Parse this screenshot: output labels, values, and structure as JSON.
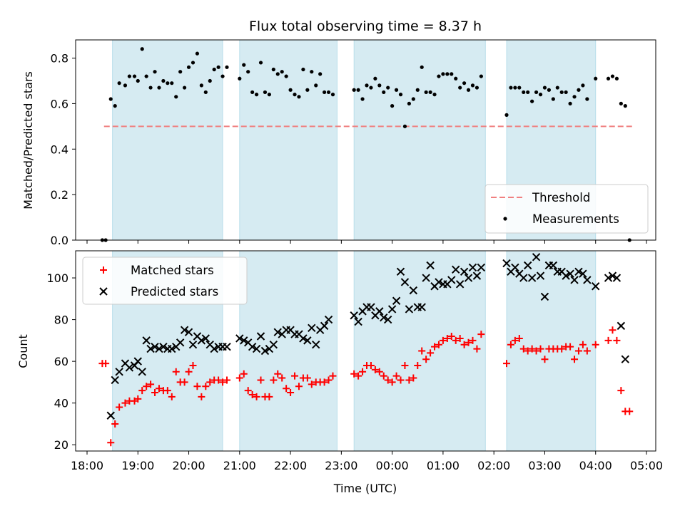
{
  "chart_data": [
    {
      "type": "scatter",
      "title": "Flux total observing time = 8.37 h",
      "ylabel": "Matched/Predicted stars",
      "xlabel": "",
      "xlim": [
        "18:00",
        "05:00"
      ],
      "ylim": [
        0,
        0.88
      ],
      "yticks": [
        "0.0",
        "0.2",
        "0.4",
        "0.6",
        "0.8"
      ],
      "legend_position": "lower-right",
      "shaded_intervals": [
        [
          "18:30",
          "20:40"
        ],
        [
          "21:00",
          "22:55"
        ],
        [
          "23:15",
          "01:50"
        ],
        [
          "02:15",
          "04:00"
        ]
      ],
      "threshold": {
        "name": "Threshold",
        "value": 0.5,
        "x_range": [
          "18:20",
          "04:45"
        ],
        "color": "#f08080"
      },
      "series": [
        {
          "name": "Measurements",
          "color": "#000000",
          "x": [
            "18:18",
            "18:22",
            "18:28",
            "18:33",
            "18:38",
            "18:45",
            "18:50",
            "18:56",
            "19:00",
            "19:05",
            "19:10",
            "19:15",
            "19:20",
            "19:25",
            "19:30",
            "19:35",
            "19:40",
            "19:45",
            "19:50",
            "19:55",
            "20:00",
            "20:05",
            "20:10",
            "20:15",
            "20:20",
            "20:25",
            "20:30",
            "20:35",
            "20:40",
            "20:45",
            "21:00",
            "21:05",
            "21:10",
            "21:15",
            "21:20",
            "21:25",
            "21:30",
            "21:35",
            "21:40",
            "21:45",
            "21:50",
            "21:55",
            "22:00",
            "22:05",
            "22:10",
            "22:15",
            "22:20",
            "22:25",
            "22:30",
            "22:35",
            "22:40",
            "22:45",
            "22:50",
            "23:15",
            "23:20",
            "23:25",
            "23:30",
            "23:35",
            "23:40",
            "23:45",
            "23:50",
            "23:55",
            "00:00",
            "00:05",
            "00:10",
            "00:15",
            "00:20",
            "00:25",
            "00:30",
            "00:35",
            "00:40",
            "00:45",
            "00:50",
            "00:55",
            "01:00",
            "01:05",
            "01:10",
            "01:15",
            "01:20",
            "01:25",
            "01:30",
            "01:35",
            "01:40",
            "01:45",
            "02:15",
            "02:20",
            "02:25",
            "02:30",
            "02:35",
            "02:40",
            "02:45",
            "02:50",
            "02:55",
            "03:00",
            "03:05",
            "03:10",
            "03:15",
            "03:20",
            "03:25",
            "03:30",
            "03:35",
            "03:40",
            "03:45",
            "03:50",
            "04:00",
            "04:15",
            "04:20",
            "04:25",
            "04:30",
            "04:35",
            "04:40"
          ],
          "y": [
            0.0,
            0.0,
            0.62,
            0.59,
            0.69,
            0.68,
            0.72,
            0.72,
            0.7,
            0.84,
            0.72,
            0.67,
            0.74,
            0.67,
            0.7,
            0.69,
            0.69,
            0.63,
            0.74,
            0.67,
            0.76,
            0.78,
            0.82,
            0.68,
            0.65,
            0.7,
            0.75,
            0.76,
            0.72,
            0.76,
            0.71,
            0.77,
            0.74,
            0.65,
            0.64,
            0.78,
            0.65,
            0.64,
            0.75,
            0.73,
            0.74,
            0.72,
            0.66,
            0.64,
            0.63,
            0.75,
            0.66,
            0.74,
            0.68,
            0.73,
            0.65,
            0.65,
            0.64,
            0.66,
            0.66,
            0.62,
            0.68,
            0.67,
            0.71,
            0.68,
            0.65,
            0.67,
            0.59,
            0.66,
            0.64,
            0.5,
            0.6,
            0.62,
            0.66,
            0.76,
            0.65,
            0.65,
            0.64,
            0.72,
            0.73,
            0.73,
            0.73,
            0.71,
            0.67,
            0.69,
            0.66,
            0.68,
            0.67,
            0.72,
            0.55,
            0.67,
            0.67,
            0.67,
            0.65,
            0.65,
            0.61,
            0.65,
            0.64,
            0.67,
            0.66,
            0.62,
            0.67,
            0.65,
            0.65,
            0.6,
            0.63,
            0.66,
            0.68,
            0.62,
            0.71,
            0.71,
            0.72,
            0.71,
            0.6,
            0.59,
            0.0
          ]
        }
      ]
    },
    {
      "type": "scatter",
      "title": "",
      "xlabel": "Time (UTC)",
      "ylabel": "Count",
      "xlim": [
        "18:00",
        "05:00"
      ],
      "ylim": [
        17,
        113
      ],
      "yticks": [
        "20",
        "40",
        "60",
        "80",
        "100"
      ],
      "xticks": [
        "18:00",
        "19:00",
        "20:00",
        "21:00",
        "22:00",
        "23:00",
        "00:00",
        "01:00",
        "02:00",
        "03:00",
        "04:00",
        "05:00"
      ],
      "legend_position": "upper-left",
      "shaded_intervals": [
        [
          "18:30",
          "20:40"
        ],
        [
          "21:00",
          "22:55"
        ],
        [
          "23:15",
          "01:50"
        ],
        [
          "02:15",
          "04:00"
        ]
      ],
      "series": [
        {
          "name": "Matched stars",
          "color": "#ff0000",
          "marker": "+",
          "x": [
            "18:18",
            "18:22",
            "18:28",
            "18:33",
            "18:38",
            "18:45",
            "18:50",
            "18:56",
            "19:00",
            "19:05",
            "19:10",
            "19:15",
            "19:20",
            "19:25",
            "19:30",
            "19:35",
            "19:40",
            "19:45",
            "19:50",
            "19:55",
            "20:00",
            "20:05",
            "20:10",
            "20:15",
            "20:20",
            "20:25",
            "20:30",
            "20:35",
            "20:40",
            "20:45",
            "21:00",
            "21:05",
            "21:10",
            "21:15",
            "21:20",
            "21:25",
            "21:30",
            "21:35",
            "21:40",
            "21:45",
            "21:50",
            "21:55",
            "22:00",
            "22:05",
            "22:10",
            "22:15",
            "22:20",
            "22:25",
            "22:30",
            "22:35",
            "22:40",
            "22:45",
            "22:50",
            "23:15",
            "23:20",
            "23:25",
            "23:30",
            "23:35",
            "23:40",
            "23:45",
            "23:50",
            "23:55",
            "00:00",
            "00:05",
            "00:10",
            "00:15",
            "00:20",
            "00:25",
            "00:30",
            "00:35",
            "00:40",
            "00:45",
            "00:50",
            "00:55",
            "01:00",
            "01:05",
            "01:10",
            "01:15",
            "01:20",
            "01:25",
            "01:30",
            "01:35",
            "01:40",
            "01:45",
            "02:15",
            "02:20",
            "02:25",
            "02:30",
            "02:35",
            "02:40",
            "02:45",
            "02:50",
            "02:55",
            "03:00",
            "03:05",
            "03:10",
            "03:15",
            "03:20",
            "03:25",
            "03:30",
            "03:35",
            "03:40",
            "03:45",
            "03:50",
            "04:00",
            "04:15",
            "04:20",
            "04:25",
            "04:30",
            "04:35",
            "04:40"
          ],
          "y": [
            59,
            59,
            21,
            30,
            38,
            40,
            41,
            41,
            42,
            46,
            48,
            49,
            45,
            47,
            46,
            46,
            43,
            55,
            50,
            50,
            55,
            58,
            48,
            43,
            48,
            50,
            51,
            51,
            50,
            51,
            52,
            54,
            46,
            44,
            43,
            51,
            43,
            43,
            51,
            54,
            52,
            47,
            45,
            53,
            48,
            52,
            52,
            49,
            50,
            50,
            50,
            51,
            53,
            54,
            53,
            55,
            58,
            58,
            56,
            55,
            53,
            51,
            50,
            53,
            51,
            58,
            51,
            52,
            58,
            65,
            61,
            64,
            67,
            68,
            70,
            71,
            72,
            70,
            71,
            68,
            69,
            70,
            66,
            73,
            59,
            68,
            70,
            71,
            66,
            65,
            66,
            65,
            66,
            61,
            66,
            66,
            66,
            66,
            67,
            67,
            61,
            65,
            68,
            65,
            68,
            70,
            75,
            70,
            46,
            36,
            36
          ]
        },
        {
          "name": "Predicted stars",
          "color": "#000000",
          "marker": "x",
          "x": [
            "18:18",
            "18:22",
            "18:28",
            "18:33",
            "18:38",
            "18:45",
            "18:50",
            "18:56",
            "19:00",
            "19:05",
            "19:10",
            "19:15",
            "19:20",
            "19:25",
            "19:30",
            "19:35",
            "19:40",
            "19:45",
            "19:50",
            "19:55",
            "20:00",
            "20:05",
            "20:10",
            "20:15",
            "20:20",
            "20:25",
            "20:30",
            "20:35",
            "20:40",
            "20:45",
            "21:00",
            "21:05",
            "21:10",
            "21:15",
            "21:20",
            "21:25",
            "21:30",
            "21:35",
            "21:40",
            "21:45",
            "21:50",
            "21:55",
            "22:00",
            "22:05",
            "22:10",
            "22:15",
            "22:20",
            "22:25",
            "22:30",
            "22:35",
            "22:40",
            "22:45",
            "22:50",
            "23:15",
            "23:20",
            "23:25",
            "23:30",
            "23:35",
            "23:40",
            "23:45",
            "23:50",
            "23:55",
            "00:00",
            "00:05",
            "00:10",
            "00:15",
            "00:20",
            "00:25",
            "00:30",
            "00:35",
            "00:40",
            "00:45",
            "00:50",
            "00:55",
            "01:00",
            "01:05",
            "01:10",
            "01:15",
            "01:20",
            "01:25",
            "01:30",
            "01:35",
            "01:40",
            "01:45",
            "02:15",
            "02:20",
            "02:25",
            "02:30",
            "02:35",
            "02:40",
            "02:45",
            "02:50",
            "02:55",
            "03:00",
            "03:05",
            "03:10",
            "03:15",
            "03:20",
            "03:25",
            "03:30",
            "03:35",
            "03:40",
            "03:45",
            "03:50",
            "04:00",
            "04:15",
            "04:20",
            "04:25",
            "04:30",
            "04:35",
            "04:40"
          ],
          "y": [
            null,
            null,
            34,
            51,
            55,
            59,
            57,
            58,
            60,
            55,
            70,
            66,
            67,
            66,
            67,
            66,
            66,
            67,
            69,
            75,
            74,
            68,
            72,
            70,
            71,
            68,
            66,
            67,
            67,
            67,
            71,
            70,
            69,
            67,
            66,
            72,
            65,
            66,
            68,
            74,
            73,
            75,
            75,
            73,
            73,
            71,
            70,
            76,
            68,
            75,
            77,
            80,
            null,
            82,
            79,
            84,
            86,
            86,
            82,
            84,
            81,
            80,
            85,
            89,
            103,
            98,
            85,
            94,
            86,
            86,
            100,
            106,
            96,
            98,
            97,
            97,
            99,
            104,
            97,
            103,
            100,
            105,
            101,
            105,
            107,
            103,
            105,
            102,
            100,
            106,
            100,
            110,
            101,
            91,
            106,
            106,
            103,
            103,
            101,
            102,
            99,
            103,
            102,
            99,
            96,
            100,
            101,
            100,
            77,
            61,
            null
          ]
        }
      ]
    }
  ]
}
